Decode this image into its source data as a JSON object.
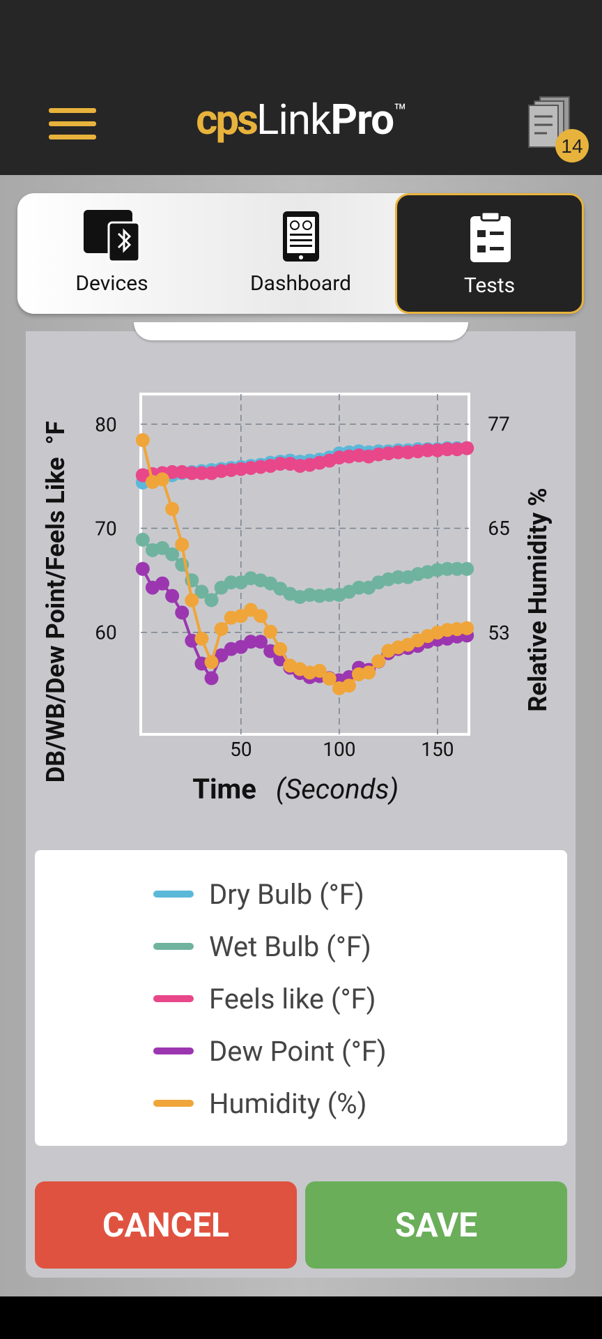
{
  "header": {
    "logo": [
      "cps",
      "Link",
      "Pro",
      "™"
    ],
    "badge": 14
  },
  "tabs": [
    "Devices",
    "Dashboard",
    "Tests"
  ],
  "chart_data": {
    "type": "line",
    "ylabel": "DB/WB/Dew Point/Feels Like  °F",
    "y2label": "Relative Humidity %",
    "xlabel": "Time",
    "xlabel_unit": "(Seconds)",
    "x": [
      0,
      5,
      10,
      15,
      20,
      25,
      30,
      35,
      40,
      45,
      50,
      55,
      60,
      65,
      70,
      75,
      80,
      85,
      90,
      95,
      100,
      105,
      110,
      115,
      120,
      125,
      130,
      135,
      140,
      145,
      150,
      155,
      160,
      165
    ],
    "xlim": [
      -1,
      166
    ],
    "xticks": [
      50,
      100,
      150
    ],
    "ylim": [
      50.2,
      82.9
    ],
    "yticks": [
      60,
      70,
      80
    ],
    "y2lim": [
      41.3,
      80.4
    ],
    "y2ticks": [
      53,
      65,
      77
    ],
    "grid": true,
    "series": [
      {
        "name": "Dry Bulb (°F)",
        "color": "#5bb8d9",
        "values": [
          74.4,
          74.8,
          75.0,
          75.1,
          75.3,
          75.4,
          75.5,
          75.6,
          75.7,
          75.8,
          75.9,
          76.0,
          76.1,
          76.3,
          76.4,
          76.5,
          76.4,
          76.5,
          76.6,
          76.8,
          77.2,
          77.3,
          77.4,
          77.3,
          77.4,
          77.4,
          77.5,
          77.5,
          77.6,
          77.6,
          77.6,
          77.7,
          77.7,
          77.7
        ]
      },
      {
        "name": "Wet Bulb (°F)",
        "color": "#6fb39e",
        "values": [
          68.9,
          67.9,
          68.1,
          67.5,
          66.5,
          65.0,
          63.9,
          63.1,
          64.3,
          64.8,
          64.8,
          65.2,
          65.0,
          64.7,
          64.2,
          63.7,
          63.4,
          63.6,
          63.5,
          63.6,
          63.6,
          63.9,
          64.3,
          64.3,
          64.8,
          65.1,
          65.3,
          65.3,
          65.6,
          65.8,
          66.0,
          66.1,
          66.1,
          66.1
        ]
      },
      {
        "name": "Feels like (°F)",
        "color": "#e8478a",
        "values": [
          75.1,
          75.2,
          75.3,
          75.4,
          75.4,
          75.3,
          75.3,
          75.3,
          75.5,
          75.6,
          75.7,
          75.8,
          75.9,
          76.0,
          76.2,
          76.2,
          76.0,
          76.1,
          76.3,
          76.5,
          76.8,
          76.9,
          77.0,
          76.9,
          77.1,
          77.2,
          77.3,
          77.3,
          77.4,
          77.5,
          77.5,
          77.6,
          77.6,
          77.7
        ]
      },
      {
        "name": "Dew Point (°F)",
        "color": "#9b36b0",
        "values": [
          66.1,
          64.3,
          64.7,
          63.5,
          61.9,
          59.2,
          57.0,
          55.6,
          57.8,
          58.4,
          58.6,
          59.1,
          59.1,
          58.2,
          57.4,
          56.6,
          56.1,
          55.7,
          55.8,
          55.6,
          55.4,
          55.7,
          56.6,
          56.4,
          57.2,
          58.0,
          58.4,
          58.5,
          58.7,
          59.1,
          59.3,
          59.4,
          59.6,
          59.7
        ]
      },
      {
        "name": "Humidity (%)",
        "color": "#f0a53a",
        "axis": "y2",
        "values": [
          75.1,
          70.3,
          70.6,
          67.2,
          63.1,
          56.7,
          52.3,
          49.6,
          53.4,
          54.7,
          54.9,
          55.6,
          54.9,
          53.1,
          51.1,
          49.2,
          48.8,
          48.4,
          48.6,
          47.7,
          46.6,
          46.9,
          48.2,
          48.4,
          49.7,
          50.9,
          51.3,
          51.6,
          52.1,
          52.6,
          53.0,
          53.3,
          53.4,
          53.5
        ]
      }
    ]
  },
  "buttons": [
    "CANCEL",
    "SAVE"
  ]
}
